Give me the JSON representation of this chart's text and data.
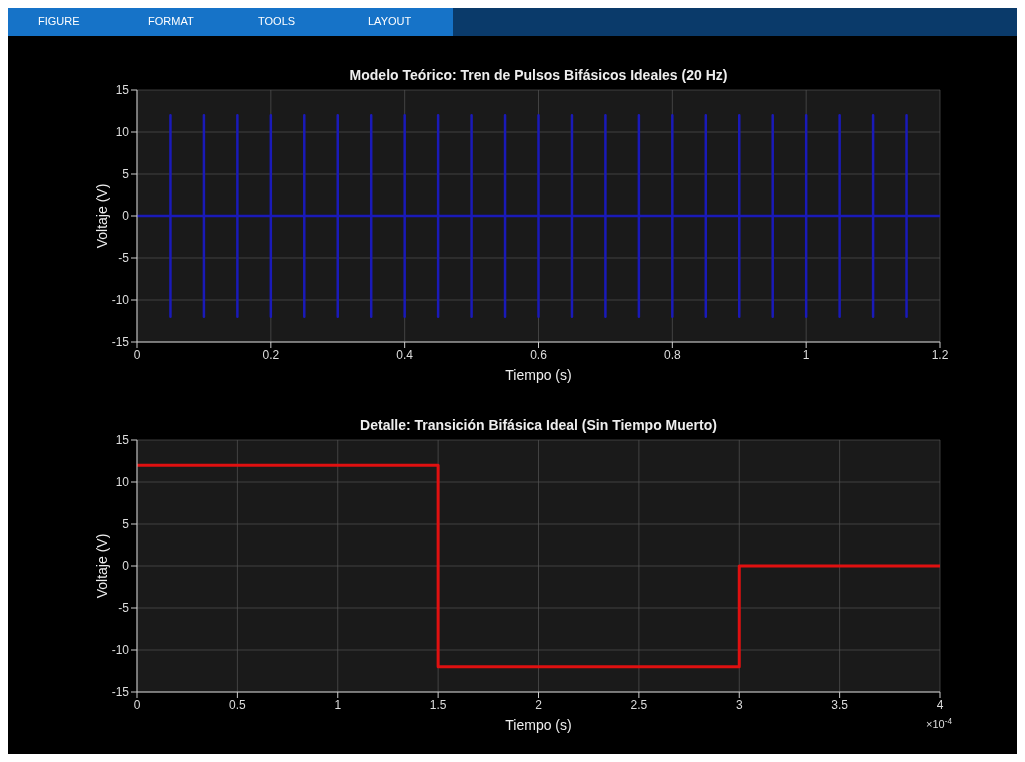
{
  "chart_data": [
    {
      "type": "line",
      "title": "Modelo Teórico: Tren de Pulsos Bifásicos Ideales (20 Hz)",
      "xlabel": "Tiempo (s)",
      "ylabel": "Voltaje (V)",
      "annotations": [
        "FIGURE",
        "FORMAT",
        "TOOLS",
        "LAYOUT"
      ],
      "x": [
        0,
        0.05,
        0.05,
        0.05,
        0.05,
        0.1,
        0.1,
        0.1,
        0.1,
        0.15,
        0.15,
        0.15,
        0.15,
        0.2,
        0.2,
        0.2,
        0.2,
        0.25,
        0.25,
        0.25,
        0.25,
        0.3,
        0.3,
        0.3,
        0.3,
        0.35,
        0.35,
        0.35,
        0.35,
        0.4,
        0.4,
        0.4,
        0.4,
        0.45,
        0.45,
        0.45,
        0.45,
        0.5,
        0.5,
        0.5,
        0.5,
        0.55,
        0.55,
        0.55,
        0.55,
        0.6,
        0.6,
        0.6,
        0.6,
        0.65,
        0.65,
        0.65,
        0.65,
        0.7,
        0.7,
        0.7,
        0.7,
        0.75,
        0.75,
        0.75,
        0.75,
        0.8,
        0.8,
        0.8,
        0.8,
        0.85,
        0.85,
        0.85,
        0.85,
        0.9,
        0.9,
        0.9,
        0.9,
        0.95,
        0.95,
        0.95,
        0.95,
        1,
        1,
        1,
        1,
        1.05,
        1.05,
        1.05,
        1.05,
        1.1,
        1.1,
        1.1,
        1.1,
        1.15,
        1.15,
        1.15,
        1.15,
        1.2
      ],
      "series": [
        {
          "color": "#1a1ab8",
          "values": [
            0,
            0,
            12,
            -12,
            0,
            0,
            12,
            -12,
            0,
            0,
            12,
            -12,
            0,
            0,
            12,
            -12,
            0,
            0,
            12,
            -12,
            0,
            0,
            12,
            -12,
            0,
            0,
            12,
            -12,
            0,
            0,
            12,
            -12,
            0,
            0,
            12,
            -12,
            0,
            0,
            12,
            -12,
            0,
            0,
            12,
            -12,
            0,
            0,
            12,
            -12,
            0,
            0,
            12,
            -12,
            0,
            0,
            12,
            -12,
            0,
            0,
            12,
            -12,
            0,
            0,
            12,
            -12,
            0,
            0,
            12,
            -12,
            0,
            0,
            12,
            -12,
            0,
            0,
            12,
            -12,
            0,
            0,
            12,
            -12,
            0,
            0,
            12,
            -12,
            0,
            0,
            12,
            -12,
            0,
            0,
            12,
            -12,
            0,
            0
          ]
        }
      ],
      "xlim": [
        0,
        1.2
      ],
      "xticks": [
        0,
        0.2,
        0.4,
        0.6,
        0.8,
        1,
        1.2
      ],
      "ylim": [
        -15,
        15
      ],
      "yticks": [
        -15,
        -10,
        -5,
        0,
        5,
        10,
        15
      ],
      "grid": true,
      "marker": "none",
      "line_style": "solid"
    },
    {
      "type": "step",
      "title": "Detalle: Transición Bifásica Ideal (Sin Tiempo Muerto)",
      "xlabel": "Tiempo (s)",
      "ylabel": "Voltaje (V)",
      "annotations": [
        "×10$^{-4}$"
      ],
      "x": [
        0,
        1.5,
        3,
        4
      ],
      "series": [
        {
          "color": "#e01010",
          "values": [
            12,
            -12,
            0,
            0
          ]
        }
      ],
      "xlim": [
        0,
        4
      ],
      "xticks": [
        0,
        0.5,
        1,
        1.5,
        2,
        2.5,
        3,
        3.5,
        4
      ],
      "ylim": [
        -15,
        15
      ],
      "yticks": [
        -15,
        -10,
        -5,
        0,
        5,
        10,
        15
      ],
      "grid": true,
      "marker": "none",
      "line_style": "solid"
    }
  ]
}
